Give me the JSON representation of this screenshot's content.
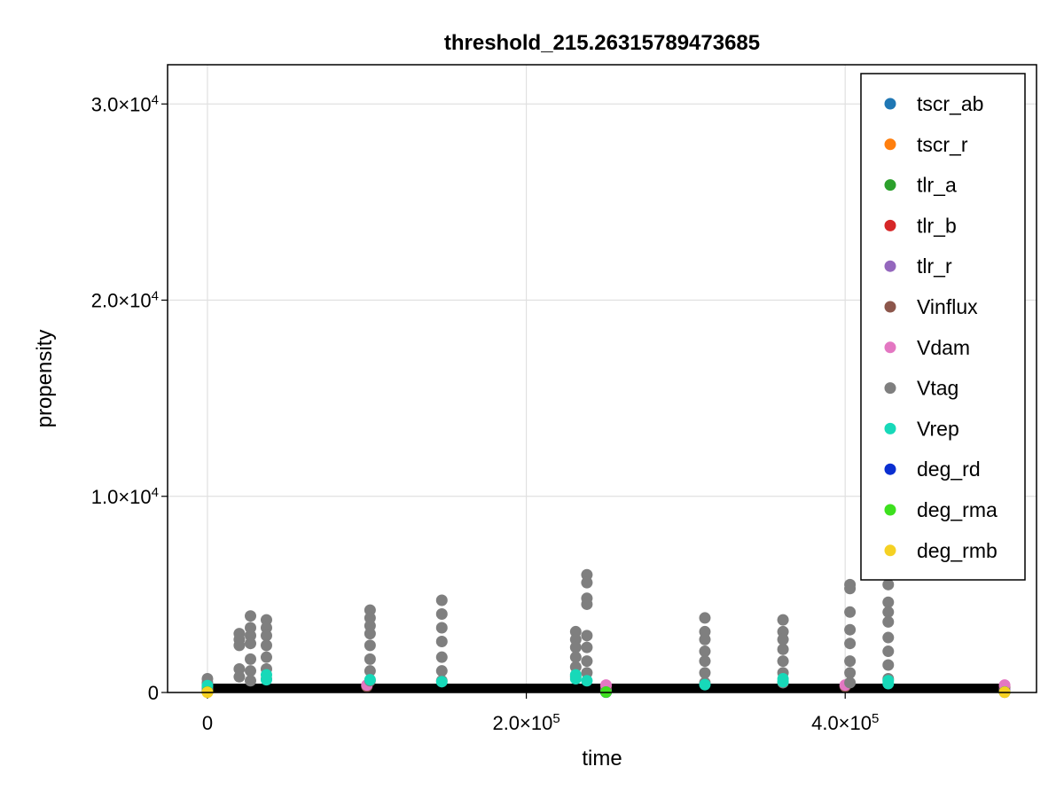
{
  "chart_data": {
    "type": "scatter",
    "title": "threshold_215.26315789473685",
    "xlabel": "time",
    "ylabel": "propensity",
    "xlim": [
      -25000,
      520000
    ],
    "ylim": [
      0,
      32000
    ],
    "grid": true,
    "legend_position": "top-right",
    "x_ticks": [
      {
        "value": 0,
        "label": "0"
      },
      {
        "value": 200000,
        "label": "2.0×10^5"
      },
      {
        "value": 400000,
        "label": "4.0×10^5"
      }
    ],
    "y_ticks": [
      {
        "value": 0,
        "label": "0"
      },
      {
        "value": 10000,
        "label": "1.0×10^4"
      },
      {
        "value": 20000,
        "label": "2.0×10^4"
      },
      {
        "value": 30000,
        "label": "3.0×10^4"
      }
    ],
    "series": [
      {
        "name": "tscr_ab",
        "color": "#1f77b4",
        "points": [
          [
            0,
            50
          ],
          [
            250000,
            30
          ],
          [
            500000,
            30
          ]
        ]
      },
      {
        "name": "tscr_r",
        "color": "#ff7f0e",
        "points": [
          [
            0,
            120
          ],
          [
            250000,
            100
          ],
          [
            500000,
            100
          ]
        ]
      },
      {
        "name": "tlr_a",
        "color": "#2ca02c",
        "points": [
          [
            0,
            40
          ],
          [
            250000,
            20
          ],
          [
            500000,
            20
          ]
        ]
      },
      {
        "name": "tlr_b",
        "color": "#d62728",
        "points": [
          [
            0,
            60
          ],
          [
            250000,
            40
          ],
          [
            500000,
            40
          ]
        ]
      },
      {
        "name": "tlr_r",
        "color": "#9467bd",
        "points": [
          [
            0,
            200
          ],
          [
            250000,
            180
          ],
          [
            500000,
            180
          ]
        ]
      },
      {
        "name": "Vinflux",
        "color": "#8c564b",
        "points": [
          [
            0,
            320
          ],
          [
            100000,
            310
          ],
          [
            250000,
            310
          ],
          [
            400000,
            310
          ],
          [
            500000,
            310
          ]
        ]
      },
      {
        "name": "Vdam",
        "color": "#e377c2",
        "points": [
          [
            0,
            400
          ],
          [
            100000,
            380
          ],
          [
            250000,
            380
          ],
          [
            400000,
            380
          ],
          [
            500000,
            380
          ]
        ]
      },
      {
        "name": "Vtag",
        "color": "#7f7f7f",
        "points": [
          [
            0,
            700
          ],
          [
            0,
            500
          ],
          [
            0,
            300
          ],
          [
            20000,
            3000
          ],
          [
            20000,
            2700
          ],
          [
            20000,
            2400
          ],
          [
            20000,
            1200
          ],
          [
            20000,
            800
          ],
          [
            27000,
            3900
          ],
          [
            27000,
            3300
          ],
          [
            27000,
            2900
          ],
          [
            27000,
            2500
          ],
          [
            27000,
            1700
          ],
          [
            27000,
            1100
          ],
          [
            27000,
            600
          ],
          [
            37000,
            3700
          ],
          [
            37000,
            3300
          ],
          [
            37000,
            2900
          ],
          [
            37000,
            2400
          ],
          [
            37000,
            1800
          ],
          [
            37000,
            1200
          ],
          [
            37000,
            700
          ],
          [
            102000,
            4200
          ],
          [
            102000,
            3800
          ],
          [
            102000,
            3400
          ],
          [
            102000,
            3000
          ],
          [
            102000,
            2400
          ],
          [
            102000,
            1700
          ],
          [
            102000,
            1100
          ],
          [
            102000,
            600
          ],
          [
            147000,
            4700
          ],
          [
            147000,
            4000
          ],
          [
            147000,
            3300
          ],
          [
            147000,
            2600
          ],
          [
            147000,
            1800
          ],
          [
            147000,
            1100
          ],
          [
            147000,
            600
          ],
          [
            231000,
            3100
          ],
          [
            231000,
            2700
          ],
          [
            231000,
            2300
          ],
          [
            231000,
            1800
          ],
          [
            231000,
            1300
          ],
          [
            231000,
            800
          ],
          [
            238000,
            6000
          ],
          [
            238000,
            5600
          ],
          [
            238000,
            4800
          ],
          [
            238000,
            4500
          ],
          [
            238000,
            2900
          ],
          [
            238000,
            2300
          ],
          [
            238000,
            1600
          ],
          [
            238000,
            1000
          ],
          [
            312000,
            3800
          ],
          [
            312000,
            3100
          ],
          [
            312000,
            2700
          ],
          [
            312000,
            2100
          ],
          [
            312000,
            1600
          ],
          [
            312000,
            1000
          ],
          [
            312000,
            500
          ],
          [
            361000,
            3700
          ],
          [
            361000,
            3100
          ],
          [
            361000,
            2700
          ],
          [
            361000,
            2200
          ],
          [
            361000,
            1600
          ],
          [
            361000,
            1000
          ],
          [
            361000,
            500
          ],
          [
            403000,
            5500
          ],
          [
            403000,
            5300
          ],
          [
            403000,
            4100
          ],
          [
            403000,
            3200
          ],
          [
            403000,
            2500
          ],
          [
            403000,
            1600
          ],
          [
            403000,
            1000
          ],
          [
            403000,
            500
          ],
          [
            427000,
            5500
          ],
          [
            427000,
            4600
          ],
          [
            427000,
            4100
          ],
          [
            427000,
            3600
          ],
          [
            427000,
            2800
          ],
          [
            427000,
            2100
          ],
          [
            427000,
            1400
          ],
          [
            427000,
            700
          ]
        ]
      },
      {
        "name": "Vrep",
        "color": "#17d9b9",
        "points": [
          [
            0,
            350
          ],
          [
            37000,
            900
          ],
          [
            37000,
            650
          ],
          [
            102000,
            650
          ],
          [
            147000,
            550
          ],
          [
            231000,
            900
          ],
          [
            231000,
            700
          ],
          [
            238000,
            600
          ],
          [
            312000,
            400
          ],
          [
            361000,
            700
          ],
          [
            361000,
            550
          ],
          [
            427000,
            600
          ],
          [
            427000,
            450
          ]
        ]
      },
      {
        "name": "deg_rd",
        "color": "#0a2fd1",
        "points": [
          [
            0,
            20
          ],
          [
            250000,
            15
          ],
          [
            500000,
            15
          ]
        ]
      },
      {
        "name": "deg_rma",
        "color": "#3de01e",
        "points": [
          [
            0,
            30
          ],
          [
            250000,
            20
          ],
          [
            500000,
            20
          ]
        ]
      },
      {
        "name": "deg_rmb",
        "color": "#f5d123",
        "points": [
          [
            0,
            10
          ],
          [
            500000,
            10
          ]
        ]
      }
    ]
  }
}
